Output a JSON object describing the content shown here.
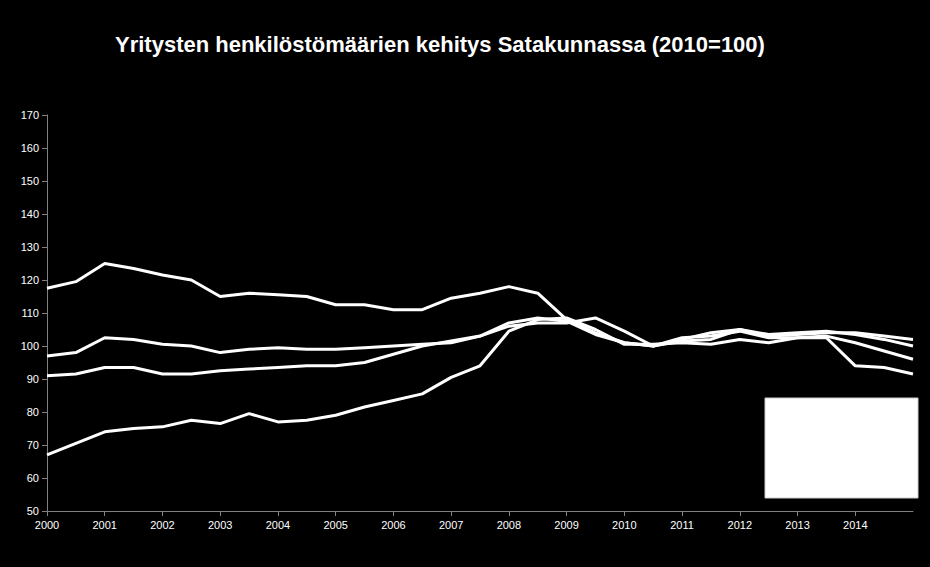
{
  "chart_data": {
    "type": "line",
    "title": "Yritysten henkilöstömäärien kehitys Satakunnassa (2010=100)",
    "x": [
      2000,
      2000.5,
      2001,
      2001.5,
      2002,
      2002.5,
      2003,
      2003.5,
      2004,
      2004.5,
      2005,
      2005.5,
      2006,
      2006.5,
      2007,
      2007.5,
      2008,
      2008.5,
      2009,
      2009.5,
      2010,
      2010.5,
      2011,
      2011.5,
      2012,
      2012.5,
      2013,
      2013.5,
      2014,
      2014.5,
      2015
    ],
    "series": [
      {
        "color": "#ffffff",
        "values": [
          117.5,
          119.5,
          125,
          123.5,
          121.5,
          120,
          115,
          116,
          115.5,
          115,
          112.5,
          112.5,
          111,
          111,
          114.5,
          116,
          118,
          116,
          108,
          104,
          101,
          100,
          102,
          104,
          105,
          103,
          103.5,
          104,
          104,
          103,
          102
        ]
      },
      {
        "color": "#ffffff",
        "values": [
          97,
          98,
          102.5,
          102,
          100.5,
          100,
          98,
          99,
          99.5,
          99,
          99,
          99.5,
          100,
          100.5,
          101,
          103,
          107,
          108.5,
          107.5,
          103.5,
          101,
          100,
          101.5,
          102,
          105,
          103.5,
          104,
          104.5,
          103.5,
          102,
          100
        ]
      },
      {
        "color": "#ffffff",
        "values": [
          91,
          91.5,
          93.5,
          93.5,
          91.5,
          91.5,
          92.5,
          93,
          93.5,
          94,
          94,
          95,
          97.5,
          100,
          101.5,
          103,
          106,
          107,
          107,
          108.5,
          104.5,
          100,
          102.5,
          103,
          104.5,
          102.5,
          102.5,
          103,
          101,
          98.5,
          96
        ]
      },
      {
        "color": "#ffffff",
        "values": [
          67,
          70.5,
          74,
          75,
          75.5,
          77.5,
          76.5,
          79.5,
          77,
          77.5,
          79,
          81.5,
          83.5,
          85.5,
          90.5,
          94,
          104.5,
          108,
          108.5,
          105,
          100.5,
          100.5,
          101,
          100.5,
          102,
          101,
          102.5,
          102.5,
          94,
          93.5,
          91.5
        ]
      }
    ],
    "xlim": [
      2000,
      2015
    ],
    "xticks": [
      2000,
      2001,
      2002,
      2003,
      2004,
      2005,
      2006,
      2007,
      2008,
      2009,
      2010,
      2011,
      2012,
      2013,
      2014
    ],
    "ylim": [
      50,
      170
    ],
    "yticks": [
      50,
      60,
      70,
      80,
      90,
      100,
      110,
      120,
      130,
      140,
      150,
      160,
      170
    ],
    "grid": false
  }
}
